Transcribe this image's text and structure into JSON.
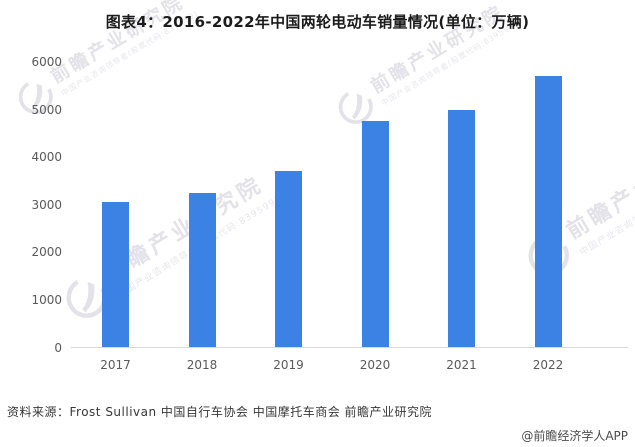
{
  "title": "图表4：2016-2022年中国两轮电动车销量情况(单位：万辆)",
  "chart_data": {
    "type": "bar",
    "categories": [
      "2017",
      "2018",
      "2019",
      "2020",
      "2021",
      "2022"
    ],
    "values": [
      3050,
      3250,
      3700,
      4760,
      5000,
      5700
    ],
    "title": "图表4：2016-2022年中国两轮电动车销量情况(单位：万辆)",
    "xlabel": "",
    "ylabel": "",
    "unit": "万辆",
    "ylim": [
      0,
      6000
    ],
    "yticks": [
      0,
      1000,
      2000,
      3000,
      4000,
      5000,
      6000
    ],
    "grid": false,
    "legend": false,
    "bar_color": "#3b82e4"
  },
  "source_line": "资料来源：Frost Sullivan 中国自行车协会 中国摩托车商会 前瞻产业研究院",
  "credit": "@前瞻经济学人APP",
  "watermark": {
    "brand": "前瞻产业研究院",
    "tagline": "中国产业咨询领导者(股票代码:839599)"
  }
}
